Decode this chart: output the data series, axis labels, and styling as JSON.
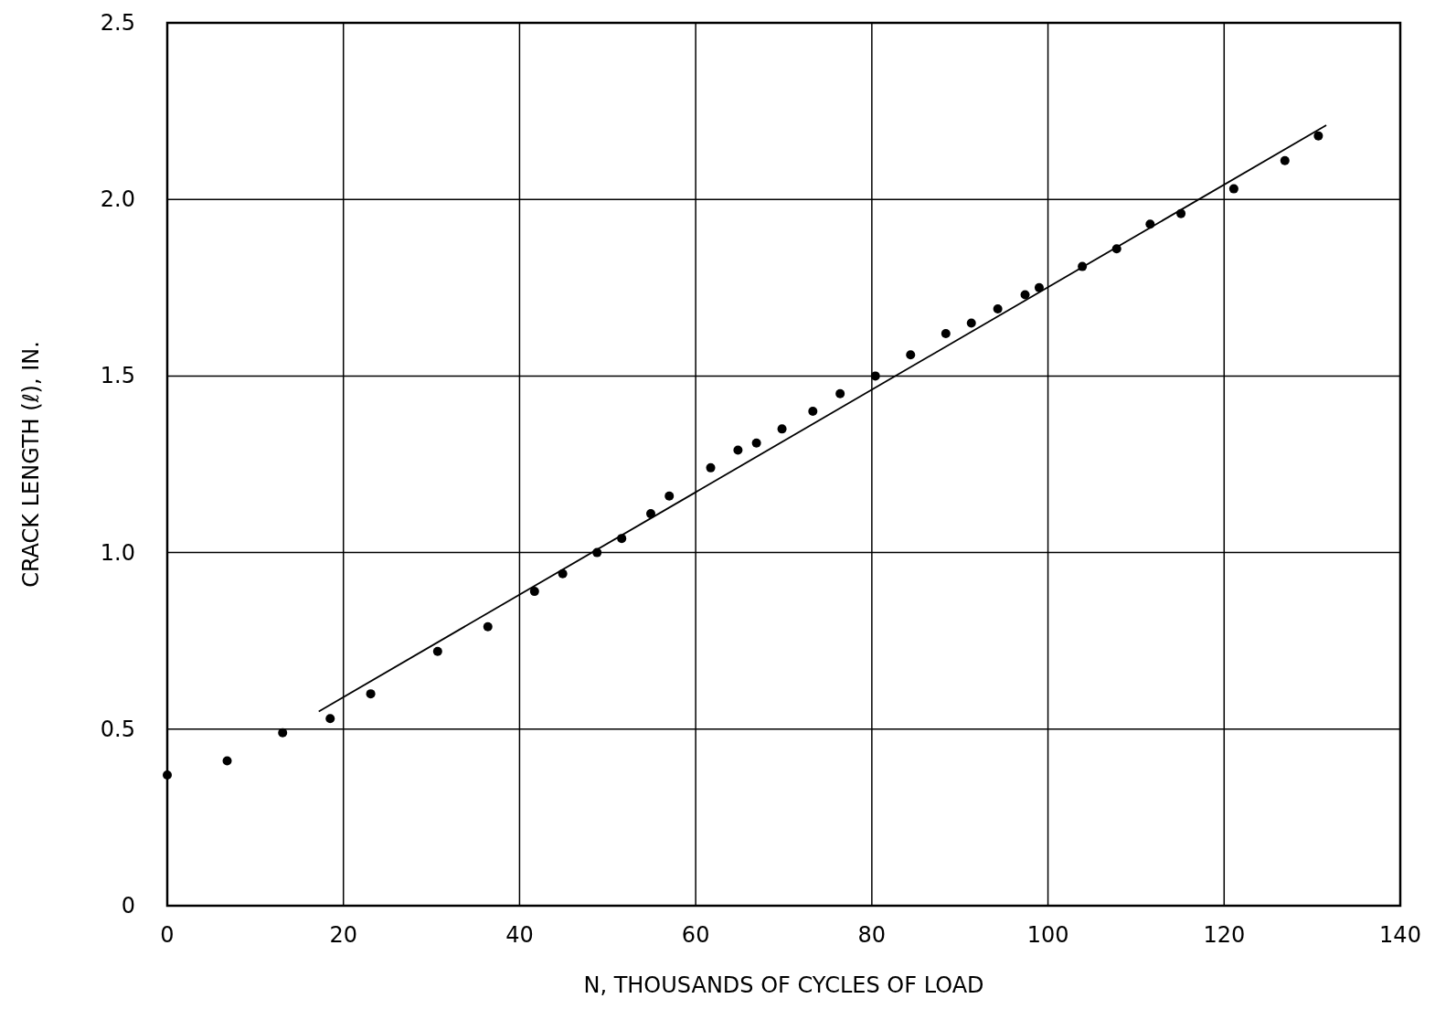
{
  "chart_data": {
    "type": "scatter",
    "xlabel": "N, THOUSANDS OF CYCLES OF LOAD",
    "ylabel": "CRACK LENGTH (ℓ), IN.",
    "xlim": [
      0,
      140
    ],
    "xticks": [
      0,
      20,
      40,
      60,
      80,
      100,
      120,
      140
    ],
    "ylim": [
      0,
      2.5
    ],
    "yticks": [
      0,
      0.5,
      {
        "value": 1,
        "label": "1.0"
      },
      1.5,
      {
        "value": 2,
        "label": "2.0"
      },
      2.5
    ],
    "grid": true,
    "marker": "circle",
    "series": [
      {
        "color": "#000000",
        "x": [
          0,
          6.8,
          13.1,
          18.5,
          23.1,
          30.7,
          36.4,
          41.7,
          44.9,
          48.8,
          51.6,
          54.9,
          57.0,
          61.7,
          64.8,
          66.9,
          69.8,
          73.3,
          76.4,
          80.4,
          84.4,
          88.4,
          91.3,
          94.3,
          97.4,
          99.0,
          103.9,
          107.8,
          111.6,
          115.1,
          121.1,
          126.9,
          130.7
        ],
        "values": [
          0.37,
          0.41,
          0.49,
          0.53,
          0.6,
          0.72,
          0.79,
          0.89,
          0.94,
          1.0,
          1.04,
          1.11,
          1.16,
          1.24,
          1.29,
          1.31,
          1.35,
          1.4,
          1.45,
          1.5,
          1.56,
          1.62,
          1.65,
          1.69,
          1.73,
          1.75,
          1.81,
          1.86,
          1.93,
          1.96,
          2.03,
          2.11,
          2.18
        ]
      },
      {
        "type": "line",
        "color": "#000000",
        "line_style": "solid",
        "marker": "none",
        "x": [
          17.2,
          131.6
        ],
        "values": [
          0.55,
          2.21
        ]
      }
    ]
  }
}
